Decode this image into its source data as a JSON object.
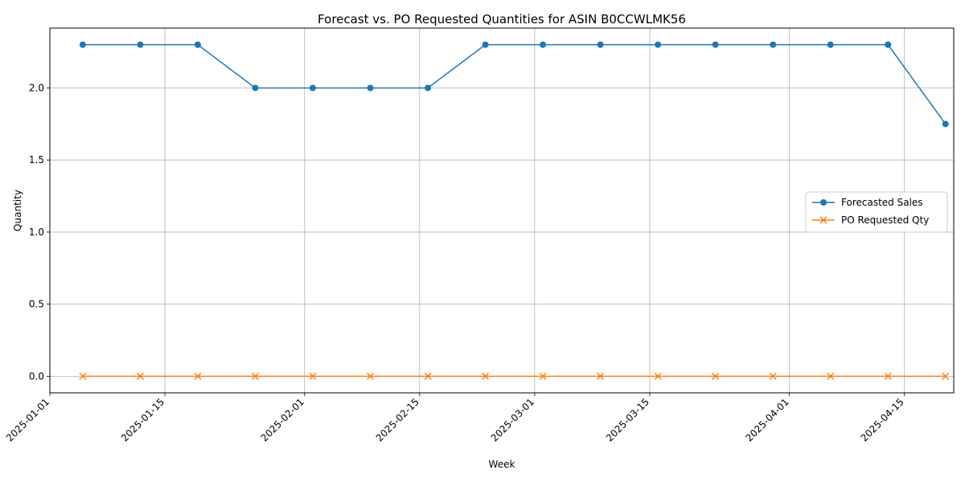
{
  "chart_data": {
    "type": "line",
    "title": "Forecast vs. PO Requested Quantities for ASIN B0CCWLMK56",
    "xlabel": "Week",
    "ylabel": "Quantity",
    "x": [
      "2025-01-05",
      "2025-01-12",
      "2025-01-19",
      "2025-01-26",
      "2025-02-02",
      "2025-02-09",
      "2025-02-16",
      "2025-02-23",
      "2025-03-02",
      "2025-03-09",
      "2025-03-16",
      "2025-03-23",
      "2025-03-30",
      "2025-04-06",
      "2025-04-13",
      "2025-04-20"
    ],
    "x_ticks": [
      "2025-01-01",
      "2025-01-15",
      "2025-02-01",
      "2025-02-15",
      "2025-03-01",
      "2025-03-15",
      "2025-04-01",
      "2025-04-15"
    ],
    "xlim": [
      "2025-01-01",
      "2025-04-21"
    ],
    "y_ticks": [
      "0.0",
      "0.5",
      "1.0",
      "1.5",
      "2.0"
    ],
    "ylim": [
      -0.115,
      2.415
    ],
    "grid": true,
    "legend_position": "center-right",
    "series": [
      {
        "name": "Forecasted Sales",
        "color": "#1f77b4",
        "marker": "circle",
        "values": [
          2.3,
          2.3,
          2.3,
          2.0,
          2.0,
          2.0,
          2.0,
          2.3,
          2.3,
          2.3,
          2.3,
          2.3,
          2.3,
          2.3,
          2.3,
          1.75
        ]
      },
      {
        "name": "PO Requested Qty",
        "color": "#ff7f0e",
        "marker": "x",
        "values": [
          0,
          0,
          0,
          0,
          0,
          0,
          0,
          0,
          0,
          0,
          0,
          0,
          0,
          0,
          0,
          0
        ]
      }
    ]
  }
}
